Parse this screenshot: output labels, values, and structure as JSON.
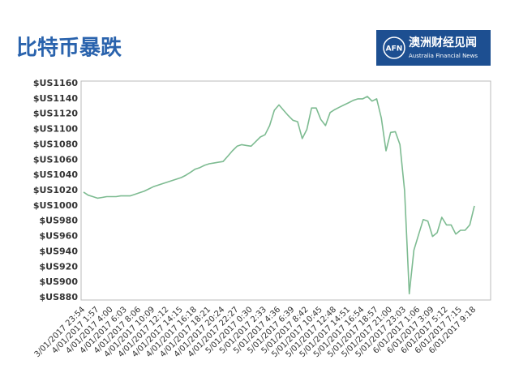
{
  "logo": {
    "abbr": "AFN",
    "name": "澳洲财经见闻",
    "subtitle": "Australia Financial News"
  },
  "chart_data": {
    "type": "line",
    "title": "比特币暴跌",
    "color": "#7dbb91",
    "grid": false,
    "categories": [
      "3/01/2017 23:54",
      null,
      null,
      "4/01/2017 1:57",
      null,
      null,
      "4/01/2017 4:00",
      null,
      null,
      "4/01/2017 6:03",
      null,
      null,
      "4/01/2017 8:06",
      null,
      null,
      "4/01/2017 10:09",
      null,
      null,
      "4/01/2017 12:12",
      null,
      null,
      "4/01/2017 14:15",
      null,
      null,
      "4/01/2017 16:18",
      null,
      null,
      "4/01/2017 18:21",
      null,
      null,
      "4/01/2017 20:24",
      null,
      null,
      "4/01/2017 22:27",
      null,
      null,
      "5/01/2017 0:30",
      null,
      null,
      "5/01/2017 2:33",
      null,
      null,
      "5/01/2017 4:36",
      null,
      null,
      "5/01/2017 6:39",
      null,
      null,
      "5/01/2017 8:42",
      null,
      null,
      "5/01/2017 10:45",
      null,
      null,
      "5/01/2017 12:48",
      null,
      null,
      "5/01/2017 14:51",
      null,
      null,
      "5/01/2017 16:54",
      null,
      null,
      "5/01/2017 18:57",
      null,
      null,
      "5/01/2017 21:00",
      null,
      null,
      "5/01/2017 23:03",
      null,
      null,
      "6/01/2017 1:06",
      null,
      null,
      "6/01/2017 3:09",
      null,
      null,
      "6/01/2017 5:12",
      null,
      null,
      "6/01/2017 7:15",
      null,
      null,
      "6/01/2017 9:18"
    ],
    "values": [
      1018,
      1014,
      1012,
      1010,
      1011,
      1012,
      1012,
      1012,
      1013,
      1013,
      1013,
      1015,
      1017,
      1019,
      1022,
      1025,
      1027,
      1029,
      1031,
      1033,
      1035,
      1037,
      1040,
      1044,
      1048,
      1050,
      1053,
      1055,
      1056,
      1057,
      1058,
      1065,
      1072,
      1078,
      1080,
      1079,
      1078,
      1084,
      1090,
      1093,
      1105,
      1125,
      1132,
      1125,
      1118,
      1112,
      1110,
      1088,
      1100,
      1128,
      1128,
      1113,
      1105,
      1122,
      1126,
      1129,
      1132,
      1135,
      1138,
      1140,
      1140,
      1143,
      1137,
      1140,
      1115,
      1072,
      1096,
      1097,
      1080,
      1020,
      885,
      942,
      962,
      982,
      980,
      960,
      965,
      985,
      975,
      975,
      963,
      968,
      968,
      975,
      1000
    ],
    "ylim": [
      880,
      1160
    ],
    "yticks": [
      {
        "value": 880,
        "label": "$US880"
      },
      {
        "value": 900,
        "label": "$US900"
      },
      {
        "value": 920,
        "label": "$US920"
      },
      {
        "value": 940,
        "label": "$US940"
      },
      {
        "value": 960,
        "label": "$US960"
      },
      {
        "value": 980,
        "label": "$US980"
      },
      {
        "value": 1000,
        "label": "$US1000"
      },
      {
        "value": 1020,
        "label": "$US1020"
      },
      {
        "value": 1040,
        "label": "$US1040"
      },
      {
        "value": 1060,
        "label": "$US1060"
      },
      {
        "value": 1080,
        "label": "$US1080"
      },
      {
        "value": 1100,
        "label": "$US1100"
      },
      {
        "value": 1120,
        "label": "$US1120"
      },
      {
        "value": 1140,
        "label": "$US1140"
      },
      {
        "value": 1160,
        "label": "$US1160"
      }
    ]
  }
}
